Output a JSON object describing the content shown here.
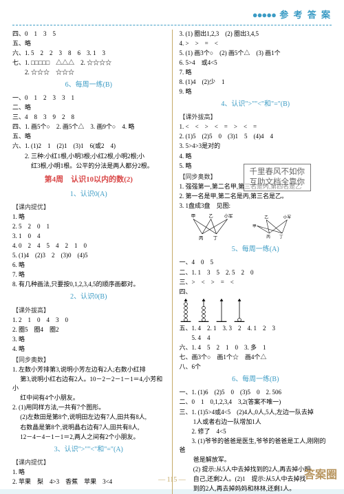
{
  "header": "参 考 答 案",
  "footer": "— 115 —",
  "watermark": "答案圈",
  "stamp_line1": "千里春风不如你",
  "stamp_line2": "互助文档全靠你",
  "colors": {
    "blue": "#3b9bc4",
    "red": "#d94848",
    "gold": "#c4a866",
    "text": "#333",
    "bg": "#fff"
  },
  "left": {
    "l1": "四、0　1　3　5",
    "l2": "五、略",
    "l3": "六、1. 5　2　2　3　8　6　3. 1　3",
    "l4": "七、1. □□□□□　△△△　2. ☆☆☆☆",
    "l5": "　　2. ☆☆☆　☆☆☆",
    "t1": "6、每周一练(B)",
    "l6": "一、0　1　2　3　3　1",
    "l7": "二、略",
    "l8": "三、4　8　3　9　2　8",
    "l9": "四、1. 画5个○　2. 画5个△　3. 画9个○　4. 略",
    "l10": "五、略",
    "l11": "六、1. (1)2　1　(2)1　(3)1　6(或2　4)",
    "l12": "　　2. 三种:小红1根,小明3根;小红2根,小明2根;小",
    "l13": "　　　红3根,小明1根。公平的分法是两人都分2根。",
    "t2": "第4周　认识10以内的数(2)",
    "t3": "1、认识0(A)",
    "b1": "【课内提优】",
    "l14": "1. 略",
    "l15": "2. 5　2　0　1",
    "l16": "3. 1　0　4",
    "l17": "4. 0　2　4　5　4　2　1　0",
    "l18": "5. (1)4　(2)3　2　(3)0　(4)5",
    "l19": "6. 略",
    "l20": "7. 略",
    "l21": "8. 有几种画法,只要按0,1,2,3,4,5的顺序画都对。",
    "t4": "2、认识0(B)",
    "b2": "【课外拔高】",
    "l22": "1. 2　1　0　4　3　0",
    "l23": "2. 圈5　圈4　圈2",
    "l24": "3. 略",
    "l25": "4. 略",
    "b3": "【同步奥数】",
    "l26": "1. 左数小芳排第3,说明小芳左边有2人;右数小红排",
    "l27": "　 第3,说明小红右边有2人。10－2－2－1－1＝4,小芳和小",
    "l28": "　 红中间有4个小朋友。",
    "l29": "2. (1)用同样方法,一共有7个图形。",
    "l30": "　 (2)左数田是第8个,说明田左边有7人,田共有8人,",
    "l31": "　 右数晶是第8个,说明晶右边有7人,田共有8人,",
    "l32": "　 12－4－4－1－1＝2,两人之间有2个小朋友。",
    "t5": "3、认识\">\"\"<\"和\"=\"(A)",
    "b4": "【课内提优】",
    "l33": "1. 略",
    "l34": "2. 苹果　梨　4>3　香蕉　苹果　3<4"
  },
  "right": {
    "r1": "3. (1) 圈出1,2,3　(2) 圈出3,4,5",
    "r2": "4. >　>　=　<",
    "r3": "5. (1) 画3个○　(2) 画5个△　(3) 画1个",
    "r4": "6. 5>4　或4<5",
    "r5": "7. 略",
    "r6": "8. (1)4　(2)少　1",
    "r7": "9. 略",
    "t6": "4、认识\">\"\"<\"和\"=\"(B)",
    "b5": "【课外拔高】",
    "r8": "1. <　<　>　<　=　>　<　=",
    "r9": "2. (1)5　(2)5　0　(3)1　5　(4)4　4",
    "r10": "3. 5>4>3是对的",
    "r11": "4. 略",
    "r12": "5. 略",
    "b6": "【同步奥数】",
    "r13": "1. 强强第一,第二名甲,第三名是丙,第四名是乙",
    "r14": "2. 第一名是甲,第二名是丙,第三名是乙。",
    "r15": "3. 1盘成3盘　见图:",
    "tree_a": {
      "top": [
        "甲",
        "乙",
        "小军"
      ],
      "bottom": [
        "丙",
        "丁"
      ]
    },
    "tree_b": {
      "top": [
        "乙",
        "小军"
      ],
      "bottom": [
        "丙",
        "丁"
      ],
      "side": "甲"
    },
    "t7": "5、每周一练(A)",
    "r16": "一、4　0　5",
    "r17": "二、1. 1　3　5　2. 5　2　0",
    "r18": "三、>　<　>　=　<",
    "r19": "四、",
    "abacus": [
      5,
      4,
      0,
      1
    ],
    "r20": "五、1. 4　2. 1　3. 3　2　4. 1　2　3",
    "r21": "　　5. 4　4",
    "r22": "六、1. 4　5　2　1　0　3. 多　1",
    "r23": "七、画3个○　画1个☆　画4个△",
    "r24": "八、6个",
    "t8": "6、每周一练(B)",
    "r25": "一、1. (1)6　(2)5　0　(3)5　0　2. 506",
    "r26": "二、0　1　0,1,2,3,4　3,2(答案不唯一)",
    "r27": "三、1. (1)5>4或4<5　(2)4人,0人,5人,左边一队去掉",
    "r28": "　　 1人或者右边一队增加1人",
    "r29": "　　2. 修了　4<5",
    "r30": "　　3. (1)爷爷的爸爸是医生,爷爷的爸爸是工人,刚刚的爸",
    "r31": "　　 爸是解放军。",
    "r32": "　　 (2) 提示:从5人中去掉找到的2人,再去掉小明",
    "r33": "　　 自己,还剩2人。(2)1　提示:从5人中去掉找",
    "r34": "　　 到的2人,再去掉妈妈和林林,还剩1人。"
  }
}
